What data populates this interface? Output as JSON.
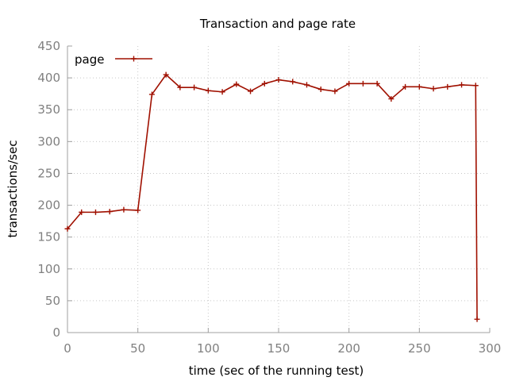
{
  "chart_data": {
    "type": "line",
    "title": "Transaction and page rate",
    "xlabel": "time (sec of the running test)",
    "ylabel": "transactions/sec",
    "xlim": [
      0,
      300
    ],
    "ylim": [
      0,
      450
    ],
    "xticks": [
      0,
      50,
      100,
      150,
      200,
      250,
      300
    ],
    "yticks": [
      0,
      50,
      100,
      150,
      200,
      250,
      300,
      350,
      400,
      450
    ],
    "grid": true,
    "legend_position": "top-left",
    "series": [
      {
        "name": "page",
        "color": "#a01000",
        "marker": "plus",
        "x": [
          0,
          10,
          20,
          30,
          40,
          50,
          60,
          70,
          80,
          90,
          100,
          110,
          120,
          130,
          140,
          150,
          160,
          170,
          180,
          190,
          200,
          210,
          220,
          230,
          240,
          250,
          260,
          270,
          280,
          290,
          291
        ],
        "y": [
          163,
          189,
          189,
          190,
          193,
          192,
          374,
          405,
          385,
          385,
          380,
          378,
          390,
          379,
          391,
          397,
          394,
          389,
          382,
          379,
          391,
          391,
          391,
          367,
          386,
          386,
          383,
          386,
          389,
          388,
          21
        ]
      }
    ]
  }
}
